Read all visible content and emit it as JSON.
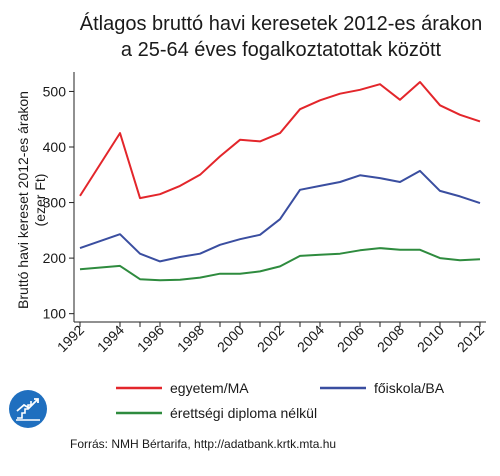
{
  "chart_data": {
    "type": "line",
    "title": [
      "Átlagos bruttó havi keresetek 2012-es árakon",
      "a 25-64 éves fogalkoztatottak között"
    ],
    "ylabel": [
      "Bruttó havi kereset 2012-es árakon",
      "(ezer Ft)"
    ],
    "xlabel": "",
    "x": [
      1992,
      1994,
      1995,
      1996,
      1997,
      1998,
      1999,
      2000,
      2001,
      2002,
      2003,
      2004,
      2005,
      2006,
      2007,
      2008,
      2009,
      2010,
      2011,
      2012
    ],
    "xticks": [
      1992,
      1994,
      1996,
      1998,
      2000,
      2002,
      2004,
      2006,
      2008,
      2010,
      2012
    ],
    "xlim": [
      1991.7,
      2012.3
    ],
    "ylim": [
      85,
      535
    ],
    "yticks": [
      100,
      200,
      300,
      400,
      500
    ],
    "grid": false,
    "series": [
      {
        "name": "egyetem/MA",
        "color": "#e3262b",
        "values": [
          312,
          425,
          308,
          315,
          330,
          350,
          383,
          413,
          410,
          425,
          468,
          484,
          496,
          503,
          513,
          485,
          517,
          475,
          458,
          446
        ]
      },
      {
        "name": "főiskola/BA",
        "color": "#3a4ea0",
        "values": [
          218,
          243,
          208,
          194,
          202,
          208,
          224,
          234,
          242,
          270,
          323,
          330,
          337,
          349,
          344,
          337,
          357,
          321,
          311,
          299
        ]
      },
      {
        "name": "érettségi diploma nélkül",
        "color": "#2e8b3e",
        "values": [
          180,
          186,
          162,
          160,
          161,
          165,
          172,
          172,
          176,
          185,
          204,
          206,
          208,
          214,
          218,
          215,
          215,
          200,
          196,
          198
        ]
      }
    ],
    "legend": "bottom"
  },
  "source": "Forrás: NMH Bértarifa, http://adatbank.krtk.mta.hu",
  "logo_icon": "growth-chart-icon",
  "logo_color": "#1f6fbf"
}
